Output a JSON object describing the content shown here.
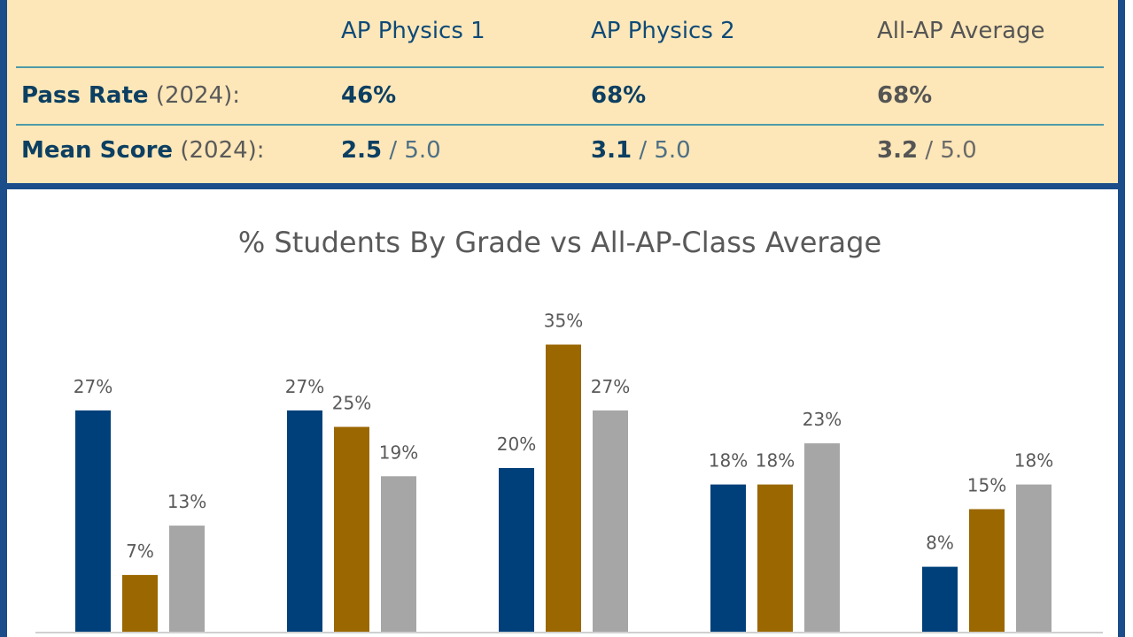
{
  "stats": {
    "columns": [
      "AP Physics 1",
      "AP Physics 2",
      "All-AP Average"
    ],
    "rows": [
      {
        "label": "Pass Rate",
        "year": "(2024):",
        "values": [
          "46%",
          "68%",
          "68%"
        ],
        "denoms": [
          "",
          "",
          ""
        ]
      },
      {
        "label": "Mean Score",
        "year": "(2024):",
        "values": [
          "2.5",
          "3.1",
          "3.2"
        ],
        "denoms": [
          " / 5.0",
          " / 5.0",
          " / 5.0"
        ]
      }
    ]
  },
  "colors": {
    "frame": "#1a4d8a",
    "panel": "#fde7b8",
    "ap1": "#00407a",
    "ap2": "#9a6700",
    "avg": "#a6a6a6"
  },
  "chart_data": {
    "type": "bar",
    "title": "% Students By Grade vs All-AP-Class Average",
    "xlabel": "",
    "ylabel": "",
    "ylim": [
      0,
      40
    ],
    "legend": "none",
    "grid": false,
    "groups": 5,
    "series": [
      {
        "color": "#00407a",
        "values": [
          27,
          27,
          20,
          18,
          8
        ],
        "labels": [
          "27%",
          "27%",
          "20%",
          "18%",
          "8%"
        ]
      },
      {
        "color": "#9a6700",
        "values": [
          7,
          25,
          35,
          18,
          15
        ],
        "labels": [
          "7%",
          "25%",
          "35%",
          "18%",
          "15%"
        ]
      },
      {
        "color": "#a6a6a6",
        "values": [
          13,
          19,
          27,
          23,
          18
        ],
        "labels": [
          "13%",
          "19%",
          "27%",
          "23%",
          "18%"
        ]
      }
    ]
  }
}
